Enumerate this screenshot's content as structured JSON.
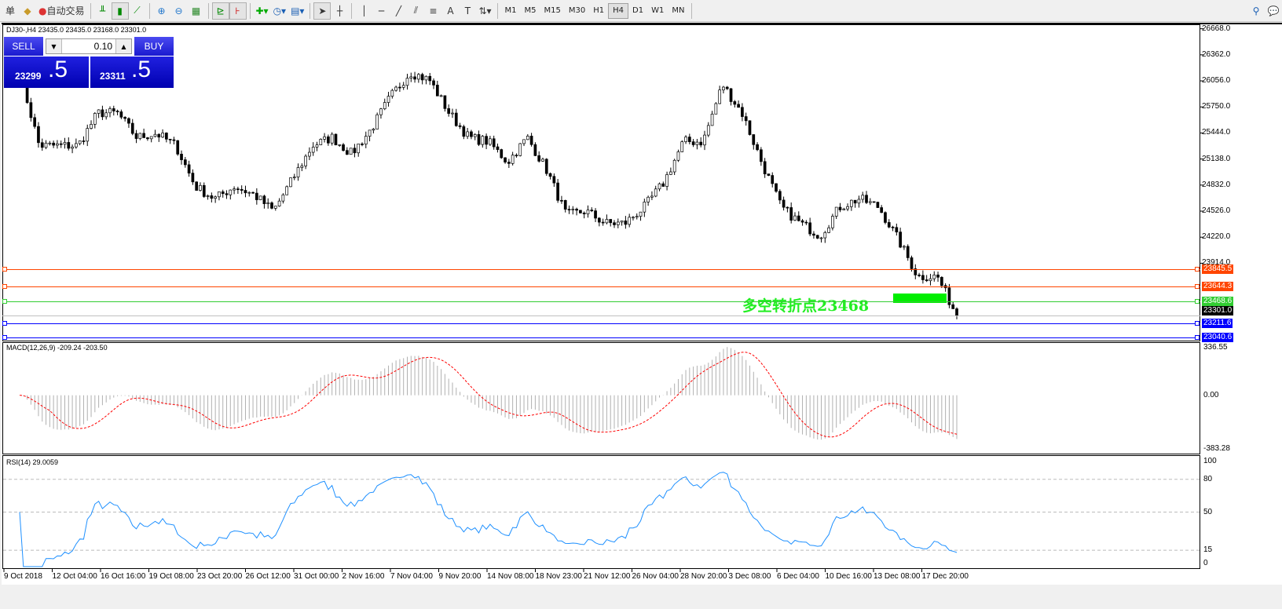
{
  "toolbar": {
    "left_text": "单",
    "auto_trade": "自动交易",
    "timeframes": [
      "M1",
      "M5",
      "M15",
      "M30",
      "H1",
      "H4",
      "D1",
      "W1",
      "MN"
    ],
    "active_timeframe": "H4",
    "icons": [
      "folder-icon",
      "bar-chart-icon",
      "candlestick-icon",
      "line-chart-icon",
      "zoom-in-icon",
      "zoom-out-icon",
      "tile-windows-icon",
      "auto-scroll-icon",
      "chart-shift-icon",
      "indicators-icon",
      "periods-clock-icon",
      "templates-icon",
      "cursor-icon",
      "crosshair-icon",
      "vertical-line-icon",
      "horizontal-line-icon",
      "trendline-icon",
      "fibonacci-fan-icon",
      "fibonacci-icon",
      "text-icon",
      "text-label-icon",
      "arrows-icon"
    ]
  },
  "chart": {
    "header": "DJ30-,H4  23435.0 23435.0 23168.0 23301.0",
    "annotation": "多空转折点23468",
    "price_axis": [
      "26668.0",
      "26362.0",
      "26056.0",
      "25750.0",
      "25444.0",
      "25138.0",
      "24832.0",
      "24526.0",
      "24220.0",
      "23914.0"
    ],
    "price_range": [
      22996,
      26720
    ],
    "levels": [
      {
        "price": "23845.5",
        "color": "#ff4500"
      },
      {
        "price": "23644.3",
        "color": "#ff4500"
      },
      {
        "price": "23468.6",
        "color": "#32cd32"
      },
      {
        "price": "23211.6",
        "color": "#0000ff"
      },
      {
        "price": "23040.6",
        "color": "#0000ff"
      }
    ],
    "current_price": "23301.0",
    "closes": [
      26159,
      25295,
      25295,
      25295,
      25679,
      25679,
      25391,
      25439,
      25295,
      24815,
      24671,
      24815,
      24719,
      24527,
      24911,
      25295,
      25391,
      25199,
      25487,
      25871,
      26159,
      26063,
      25679,
      25391,
      25343,
      25103,
      25391,
      25007,
      24479,
      24527,
      24383,
      24383,
      24575,
      24863,
      25343,
      25343,
      26015,
      25679,
      25103,
      24575,
      24383,
      24239,
      24575,
      24671,
      24575,
      24191,
      23759,
      23759,
      23301
    ]
  },
  "trade_panel": {
    "sell": "SELL",
    "buy": "BUY",
    "lot": "0.10",
    "bid_main": "23299",
    "bid_frac": ".5",
    "ask_main": "23311",
    "ask_frac": ".5"
  },
  "macd": {
    "label": "MACD(12,26,9) -209.24 -203.50",
    "axis": [
      "336.55",
      "0.00",
      "-383.28"
    ],
    "range": [
      -383.28,
      336.55
    ]
  },
  "rsi": {
    "label": "RSI(14) 29.0059",
    "axis": [
      "100",
      "80",
      "50",
      "15",
      "0"
    ],
    "levels": [
      80,
      50,
      15
    ]
  },
  "time_axis": [
    "9 Oct 2018",
    "12 Oct 04:00",
    "16 Oct 16:00",
    "19 Oct 08:00",
    "23 Oct 20:00",
    "26 Oct 12:00",
    "31 Oct 00:00",
    "2 Nov 16:00",
    "7 Nov 04:00",
    "9 Nov 20:00",
    "14 Nov 08:00",
    "18 Nov 23:00",
    "21 Nov 12:00",
    "26 Nov 04:00",
    "28 Nov 20:00",
    "3 Dec 08:00",
    "6 Dec 04:00",
    "10 Dec 16:00",
    "13 Dec 08:00",
    "17 Dec 20:00"
  ]
}
